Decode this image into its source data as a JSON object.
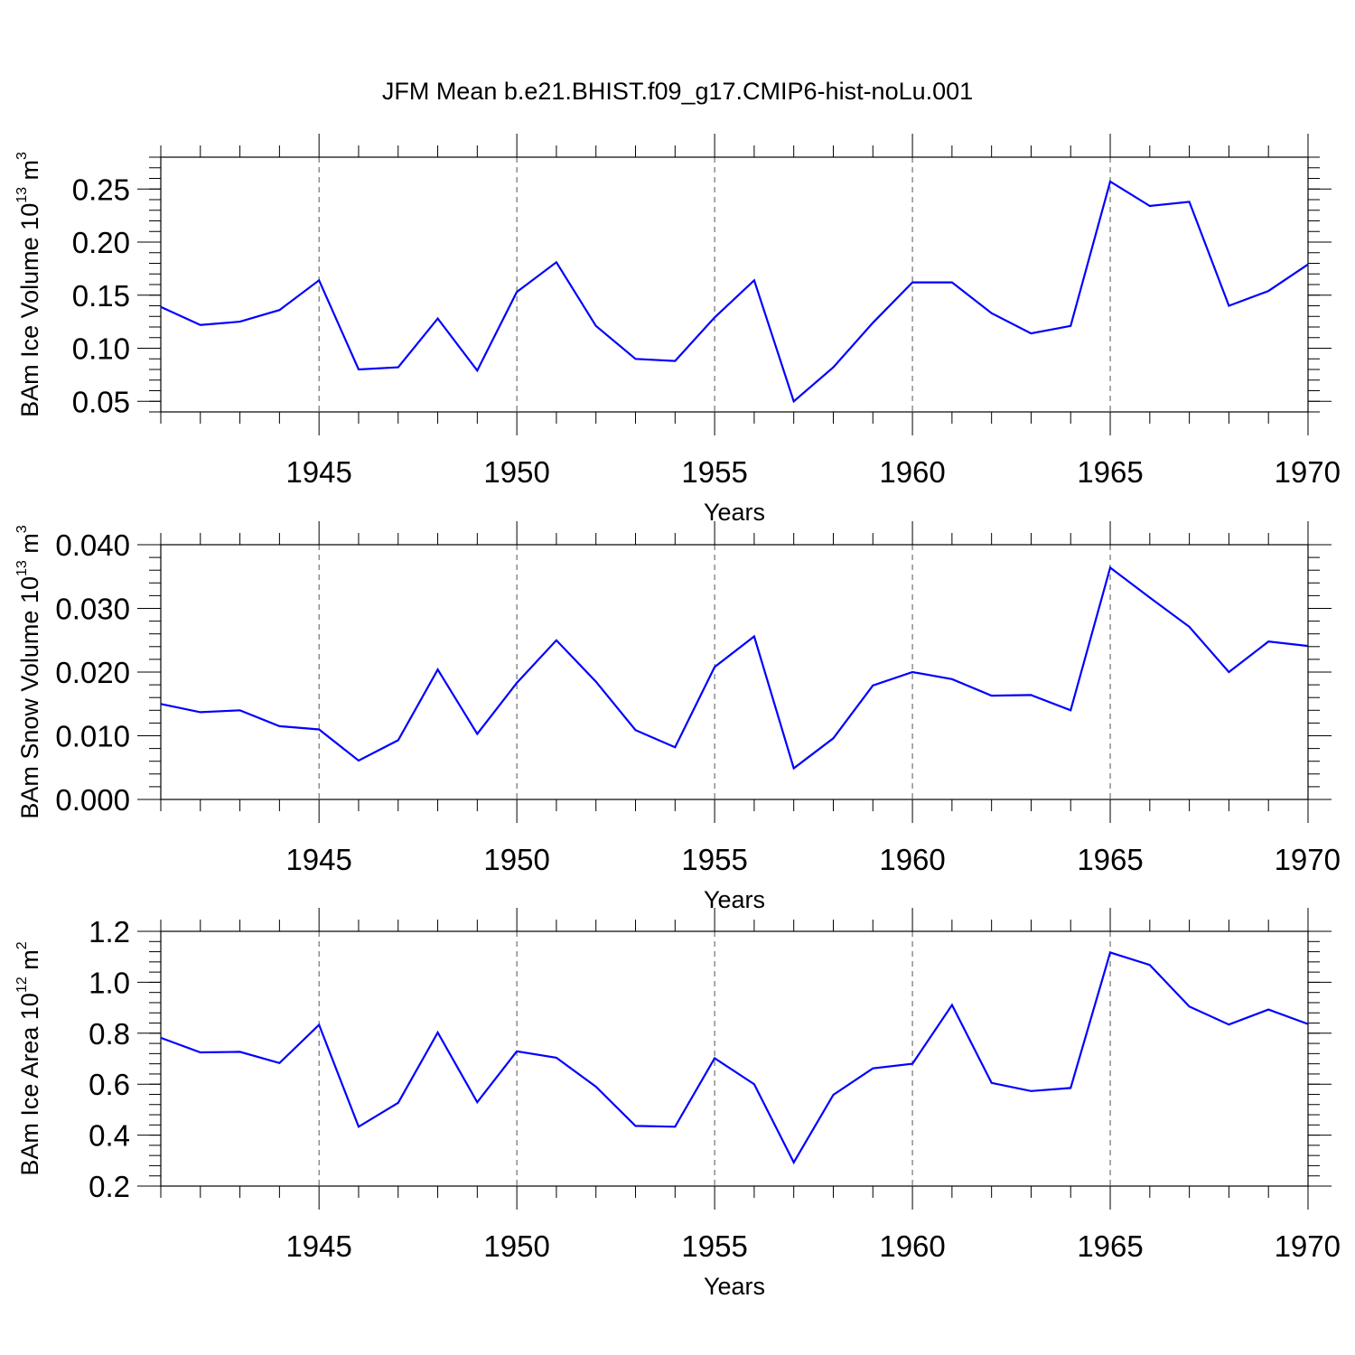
{
  "figure": {
    "title": "JFM Mean b.e21.BHIST.f09_g17.CMIP6-hist-noLu.001"
  },
  "chart_data": [
    {
      "type": "line",
      "ylabel": {
        "text": "BAm Ice Volume 10",
        "exp": "13",
        "unit": " m",
        "unit_exp": "3"
      },
      "xlabel": "Years",
      "xlim": [
        1941,
        1970
      ],
      "ylim": [
        0.04,
        0.28
      ],
      "yticks": [
        "0.05",
        "0.10",
        "0.15",
        "0.20",
        "0.25"
      ],
      "ytick_values": [
        0.05,
        0.1,
        0.15,
        0.2,
        0.25
      ],
      "yminor_step": 0.01,
      "xticks": [
        "1945",
        "1950",
        "1955",
        "1960",
        "1965",
        "1970"
      ],
      "xtick_values": [
        1945,
        1950,
        1955,
        1960,
        1965,
        1970
      ],
      "grid": "x-dashed",
      "line_color": "#0000ff",
      "x": [
        1941,
        1942,
        1943,
        1944,
        1945,
        1946,
        1947,
        1948,
        1949,
        1950,
        1951,
        1952,
        1953,
        1954,
        1955,
        1956,
        1957,
        1958,
        1959,
        1960,
        1961,
        1962,
        1963,
        1964,
        1965,
        1966,
        1967,
        1968,
        1969,
        1970
      ],
      "series": [
        {
          "values": [
            0.139,
            0.122,
            0.125,
            0.136,
            0.164,
            0.08,
            0.082,
            0.128,
            0.079,
            0.153,
            0.181,
            0.121,
            0.09,
            0.088,
            0.129,
            0.164,
            0.05,
            0.082,
            0.124,
            0.162,
            0.162,
            0.133,
            0.114,
            0.121,
            0.257,
            0.234,
            0.238,
            0.14,
            0.154,
            0.179
          ]
        }
      ]
    },
    {
      "type": "line",
      "ylabel": {
        "text": "BAm Snow Volume 10",
        "exp": "13",
        "unit": " m",
        "unit_exp": "3"
      },
      "xlabel": "Years",
      "xlim": [
        1941,
        1970
      ],
      "ylim": [
        0.0,
        0.04
      ],
      "yticks": [
        "0.000",
        "0.010",
        "0.020",
        "0.030",
        "0.040"
      ],
      "ytick_values": [
        0.0,
        0.01,
        0.02,
        0.03,
        0.04
      ],
      "yminor_step": 0.002,
      "xticks": [
        "1945",
        "1950",
        "1955",
        "1960",
        "1965",
        "1970"
      ],
      "xtick_values": [
        1945,
        1950,
        1955,
        1960,
        1965,
        1970
      ],
      "grid": "x-dashed",
      "line_color": "#0000ff",
      "x": [
        1941,
        1942,
        1943,
        1944,
        1945,
        1946,
        1947,
        1948,
        1949,
        1950,
        1951,
        1952,
        1953,
        1954,
        1955,
        1956,
        1957,
        1958,
        1959,
        1960,
        1961,
        1962,
        1963,
        1964,
        1965,
        1966,
        1967,
        1968,
        1969,
        1970
      ],
      "series": [
        {
          "values": [
            0.015,
            0.0137,
            0.014,
            0.0115,
            0.011,
            0.0061,
            0.0093,
            0.0204,
            0.0103,
            0.0183,
            0.025,
            0.0185,
            0.0109,
            0.0082,
            0.0208,
            0.0256,
            0.0049,
            0.0096,
            0.0179,
            0.02,
            0.0189,
            0.0163,
            0.0164,
            0.014,
            0.0364,
            0.0317,
            0.0271,
            0.02,
            0.0248,
            0.0241
          ]
        }
      ]
    },
    {
      "type": "line",
      "ylabel": {
        "text": "BAm Ice Area 10",
        "exp": "12",
        "unit": " m",
        "unit_exp": "2"
      },
      "xlabel": "Years",
      "xlim": [
        1941,
        1970
      ],
      "ylim": [
        0.2,
        1.2
      ],
      "yticks": [
        "0.2",
        "0.4",
        "0.6",
        "0.8",
        "1.0",
        "1.2"
      ],
      "ytick_values": [
        0.2,
        0.4,
        0.6,
        0.8,
        1.0,
        1.2
      ],
      "yminor_step": 0.04,
      "xticks": [
        "1945",
        "1950",
        "1955",
        "1960",
        "1965",
        "1970"
      ],
      "xtick_values": [
        1945,
        1950,
        1955,
        1960,
        1965,
        1970
      ],
      "grid": "x-dashed",
      "line_color": "#0000ff",
      "x": [
        1941,
        1942,
        1943,
        1944,
        1945,
        1946,
        1947,
        1948,
        1949,
        1950,
        1951,
        1952,
        1953,
        1954,
        1955,
        1956,
        1957,
        1958,
        1959,
        1960,
        1961,
        1962,
        1963,
        1964,
        1965,
        1966,
        1967,
        1968,
        1969,
        1970
      ],
      "series": [
        {
          "values": [
            0.782,
            0.725,
            0.727,
            0.683,
            0.833,
            0.433,
            0.527,
            0.803,
            0.529,
            0.729,
            0.704,
            0.59,
            0.436,
            0.433,
            0.702,
            0.6,
            0.293,
            0.558,
            0.662,
            0.68,
            0.911,
            0.605,
            0.573,
            0.585,
            1.117,
            1.068,
            0.905,
            0.834,
            0.893,
            0.836
          ]
        }
      ]
    }
  ]
}
